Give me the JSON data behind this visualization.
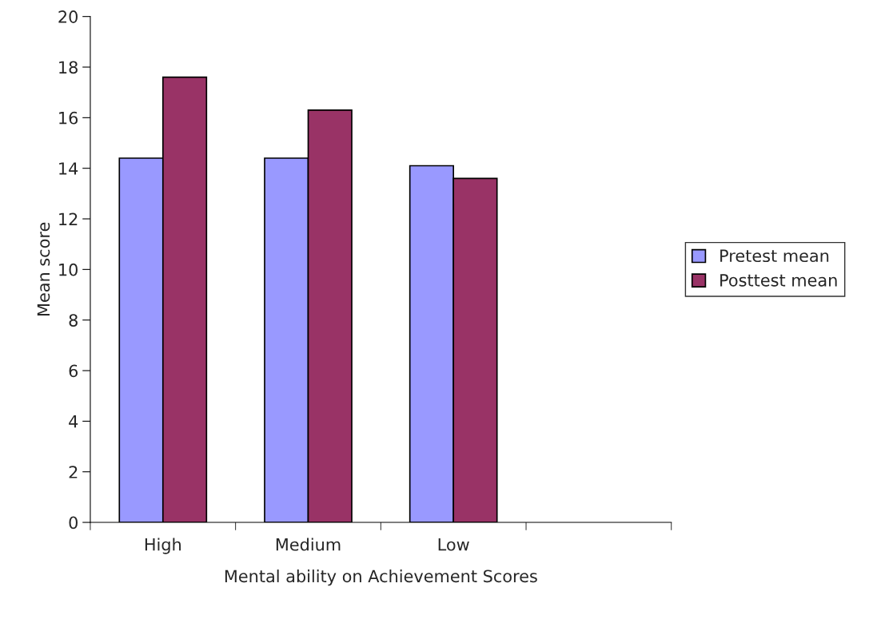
{
  "chart_data": {
    "type": "bar",
    "xlabel": "Mental ability on Achievement Scores",
    "ylabel": "Mean score",
    "categories": [
      "High",
      "Medium",
      "Low",
      null
    ],
    "series": [
      {
        "name": "Pretest mean",
        "color": "#9999ff",
        "values": [
          14.4,
          14.4,
          14.1,
          null
        ]
      },
      {
        "name": "Posttest mean",
        "color": "#993366",
        "values": [
          17.6,
          16.3,
          13.6,
          null
        ]
      }
    ],
    "ylim": [
      0,
      20
    ],
    "yticks": [
      0,
      2,
      4,
      6,
      8,
      10,
      12,
      14,
      16,
      18,
      20
    ],
    "grid": false,
    "legend": "right"
  }
}
